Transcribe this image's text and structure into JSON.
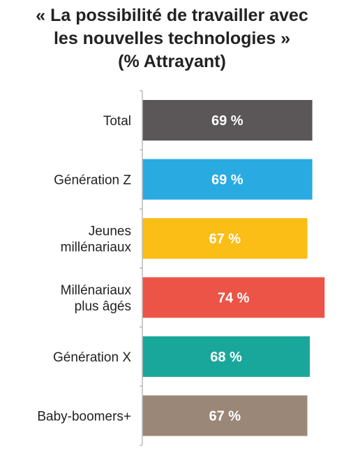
{
  "chart_data": {
    "type": "bar",
    "orientation": "horizontal",
    "title_lines": [
      "« La possibilité de travailler avec",
      "les nouvelles technologies »",
      "(% Attrayant)"
    ],
    "categories": [
      [
        "Total"
      ],
      [
        "Génération Z"
      ],
      [
        "Jeunes",
        "millénariaux"
      ],
      [
        "Millénariaux",
        "plus âgés"
      ],
      [
        "Génération X"
      ],
      [
        "Baby-boomers+"
      ]
    ],
    "values": [
      69,
      69,
      67,
      74,
      68,
      67
    ],
    "value_labels": [
      "69 %",
      "69 %",
      "67 %",
      "74 %",
      "68 %",
      "67 %"
    ],
    "colors": [
      "#5b5758",
      "#29aae1",
      "#fbbe17",
      "#eb5446",
      "#1aa79b",
      "#9a8778"
    ],
    "axis_color": "#bbbbbb"
  }
}
